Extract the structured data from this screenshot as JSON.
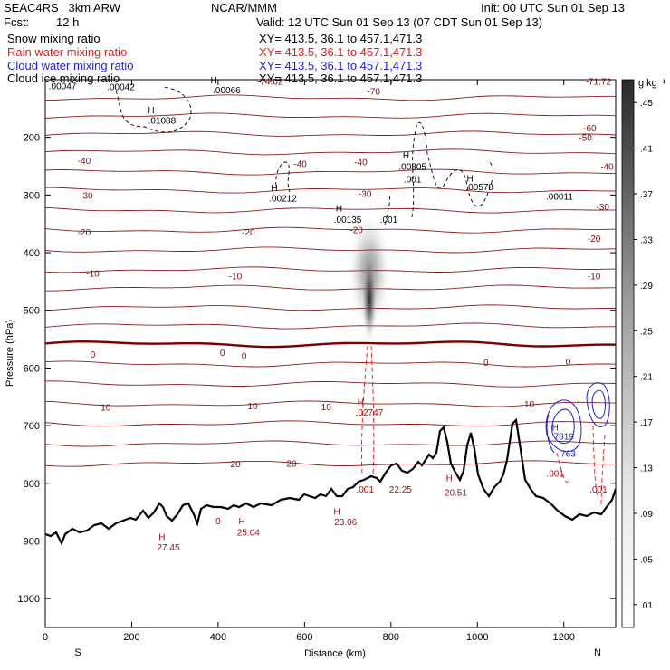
{
  "header": {
    "model": "SEAC4RS   3km ARW",
    "org": "NCAR/MMM",
    "init": "Init: 00 UTC Sun 01 Sep 13",
    "fcst_label": "Fcst:",
    "fcst_value": "12 h",
    "valid": "Valid: 12 UTC Sun 01 Sep 13 (07 CDT Sun 01 Sep 13)",
    "fields": [
      {
        "name": "Snow mixing ratio",
        "color": "#000000",
        "xy": "XY= 413.5, 36.1 to 457.1,471.3"
      },
      {
        "name": "Rain water mixing ratio",
        "color": "#e31a1c",
        "xy": "XY= 413.5, 36.1 to 457.1,471.3"
      },
      {
        "name": "Cloud water mixing ratio",
        "color": "#1f1fd0",
        "xy": "XY= 413.5, 36.1 to 457.1,471.3"
      },
      {
        "name": "Cloud ice mixing ratio",
        "color": "#000000",
        "xy": "XY= 413.5, 36.1 to 457.1,471.3"
      }
    ]
  },
  "chart_data": {
    "type": "cross-section",
    "xlabel": "Distance (km)",
    "ylabel": "Pressure (hPa)",
    "xlim": [
      0,
      1320
    ],
    "ylim": [
      1050,
      100
    ],
    "x_ticks": [
      0,
      200,
      400,
      600,
      800,
      1000,
      1200
    ],
    "y_ticks": [
      200,
      300,
      400,
      500,
      600,
      700,
      800,
      900,
      1000
    ],
    "x_end_labels": {
      "left": "S",
      "right": "N"
    },
    "colorbar": {
      "unit": "g kg⁻¹",
      "levels": [
        0.01,
        0.05,
        0.09,
        0.13,
        0.17,
        0.21,
        0.25,
        0.29,
        0.33,
        0.37,
        0.41,
        0.45
      ]
    },
    "temperature_labels": [
      {
        "text": "-74.62",
        "x": 520,
        "p": 102
      },
      {
        "text": "-71.72",
        "x": 1280,
        "p": 102
      },
      {
        "text": "-70",
        "x": 760,
        "p": 120
      },
      {
        "text": "-60",
        "x": 1260,
        "p": 183
      },
      {
        "text": "-50",
        "x": 1250,
        "p": 200
      },
      {
        "text": "-40",
        "x": 90,
        "p": 240
      },
      {
        "text": "-40",
        "x": 590,
        "p": 245
      },
      {
        "text": "-40",
        "x": 730,
        "p": 242
      },
      {
        "text": "-40",
        "x": 1300,
        "p": 250
      },
      {
        "text": "-30",
        "x": 95,
        "p": 300
      },
      {
        "text": "-30",
        "x": 740,
        "p": 297
      },
      {
        "text": "-30",
        "x": 1290,
        "p": 320
      },
      {
        "text": "-20",
        "x": 90,
        "p": 364
      },
      {
        "text": "-20",
        "x": 470,
        "p": 364
      },
      {
        "text": "-20",
        "x": 720,
        "p": 360
      },
      {
        "text": "-20",
        "x": 1270,
        "p": 375
      },
      {
        "text": "-10",
        "x": 110,
        "p": 435
      },
      {
        "text": "-10",
        "x": 440,
        "p": 440
      },
      {
        "text": "-10",
        "x": 1270,
        "p": 440
      },
      {
        "text": "0",
        "x": 110,
        "p": 576
      },
      {
        "text": "0",
        "x": 410,
        "p": 573
      },
      {
        "text": "0",
        "x": 460,
        "p": 578
      },
      {
        "text": "0",
        "x": 1020,
        "p": 590
      },
      {
        "text": "0",
        "x": 1210,
        "p": 588
      },
      {
        "text": "10",
        "x": 140,
        "p": 668
      },
      {
        "text": "10",
        "x": 480,
        "p": 665
      },
      {
        "text": "10",
        "x": 650,
        "p": 667
      },
      {
        "text": "10",
        "x": 1120,
        "p": 662
      },
      {
        "text": "20",
        "x": 440,
        "p": 766
      },
      {
        "text": "20",
        "x": 570,
        "p": 765
      }
    ],
    "extrema_labels": [
      {
        "text": ".00047",
        "x": 40,
        "p": 110,
        "color": "#000000"
      },
      {
        "text": ".00042",
        "x": 175,
        "p": 112,
        "color": "#000000"
      },
      {
        "text": "H",
        "x": 390,
        "p": 100,
        "color": "#000000"
      },
      {
        "text": ".00066",
        "x": 420,
        "p": 117,
        "color": "#000000"
      },
      {
        "text": "H",
        "x": 245,
        "p": 152,
        "color": "#000000"
      },
      {
        "text": ".01088",
        "x": 270,
        "p": 170,
        "color": "#000000"
      },
      {
        "text": "H",
        "x": 835,
        "p": 230,
        "color": "#000000"
      },
      {
        "text": ".00805",
        "x": 850,
        "p": 250,
        "color": "#000000"
      },
      {
        "text": ".001",
        "x": 850,
        "p": 272,
        "color": "#000000"
      },
      {
        "text": "H",
        "x": 983,
        "p": 270,
        "color": "#000000"
      },
      {
        "text": ".00578",
        "x": 1005,
        "p": 285,
        "color": "#000000"
      },
      {
        "text": ".00011",
        "x": 1190,
        "p": 302,
        "color": "#000000"
      },
      {
        "text": "H",
        "x": 530,
        "p": 287,
        "color": "#000000"
      },
      {
        "text": ".00212",
        "x": 550,
        "p": 305,
        "color": "#000000"
      },
      {
        "text": "H",
        "x": 680,
        "p": 322,
        "color": "#000000"
      },
      {
        "text": ".00135",
        "x": 700,
        "p": 342,
        "color": "#000000"
      },
      {
        "text": ".001",
        "x": 795,
        "p": 342,
        "color": "#000000"
      },
      {
        "text": "H",
        "x": 730,
        "p": 658,
        "color": "#a01010"
      },
      {
        "text": ".02747",
        "x": 750,
        "p": 676,
        "color": "#a01010"
      },
      {
        "text": "H",
        "x": 1180,
        "p": 702,
        "color": "#1f1fd0"
      },
      {
        "text": "7819",
        "x": 1200,
        "p": 718,
        "color": "#1f1fd0"
      },
      {
        "text": "763",
        "x": 1210,
        "p": 748,
        "color": "#1f1fd0"
      },
      {
        "text": ".001",
        "x": 1180,
        "p": 782,
        "color": "#a01010"
      },
      {
        "text": ".001",
        "x": 1280,
        "p": 810,
        "color": "#a01010"
      },
      {
        "text": ".001",
        "x": 740,
        "p": 810,
        "color": "#a01010"
      },
      {
        "text": "22.25",
        "x": 822,
        "p": 810,
        "color": "#a01010"
      },
      {
        "text": "H",
        "x": 935,
        "p": 790,
        "color": "#a01010"
      },
      {
        "text": "20.51",
        "x": 950,
        "p": 815,
        "color": "#a01010"
      },
      {
        "text": "H",
        "x": 675,
        "p": 848,
        "color": "#a01010"
      },
      {
        "text": "23.06",
        "x": 695,
        "p": 866,
        "color": "#a01010"
      },
      {
        "text": "H",
        "x": 455,
        "p": 865,
        "color": "#a01010"
      },
      {
        "text": "25.04",
        "x": 470,
        "p": 884,
        "color": "#a01010"
      },
      {
        "text": "0",
        "x": 400,
        "p": 865,
        "color": "#a01010"
      },
      {
        "text": "H",
        "x": 270,
        "p": 892,
        "color": "#a01010"
      },
      {
        "text": "27.45",
        "x": 285,
        "p": 910,
        "color": "#a01010"
      }
    ]
  }
}
